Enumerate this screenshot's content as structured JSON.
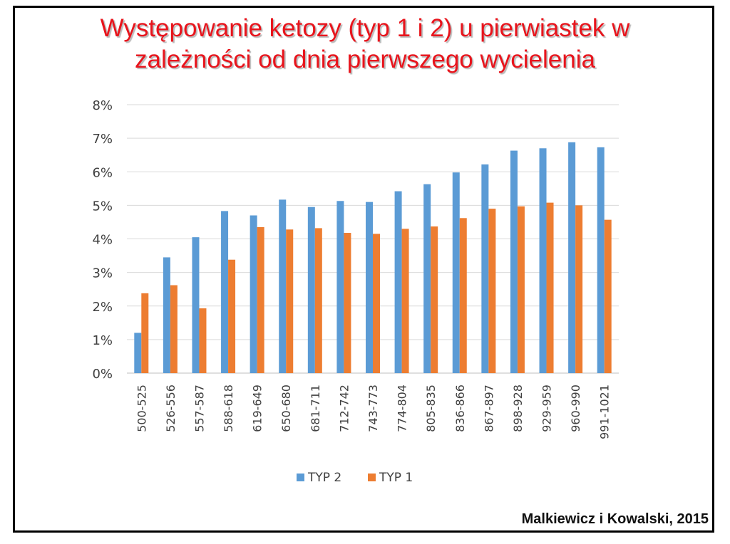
{
  "title_lines": [
    "Występowanie ketozy (typ 1 i 2) u pierwiastek w",
    "zależności od dnia pierwszego wycielenia"
  ],
  "credit": "Malkiewicz i Kowalski, 2015",
  "colors": {
    "title": "#e8141c",
    "typ2": "#5b9bd5",
    "typ1": "#ed7d31",
    "grid": "#d9d9d9",
    "axis_text": "#404040"
  },
  "chart_data": {
    "type": "bar",
    "categories": [
      "500-525",
      "526-556",
      "557-587",
      "588-618",
      "619-649",
      "650-680",
      "681-711",
      "712-742",
      "743-773",
      "774-804",
      "805-835",
      "836-866",
      "867-897",
      "898-928",
      "929-959",
      "960-990",
      "991-1021"
    ],
    "series": [
      {
        "name": "TYP 2",
        "color": "#5b9bd5",
        "values": [
          1.2,
          3.45,
          4.05,
          4.83,
          4.7,
          5.17,
          4.95,
          5.13,
          5.1,
          5.42,
          5.63,
          5.98,
          6.22,
          6.63,
          6.7,
          6.88,
          6.73
        ]
      },
      {
        "name": "TYP 1",
        "color": "#ed7d31",
        "values": [
          2.38,
          2.62,
          1.93,
          3.38,
          4.35,
          4.28,
          4.32,
          4.18,
          4.15,
          4.3,
          4.37,
          4.62,
          4.9,
          4.97,
          5.08,
          5.0,
          4.57
        ]
      }
    ],
    "yticks": [
      "0%",
      "1%",
      "2%",
      "3%",
      "4%",
      "5%",
      "6%",
      "7%",
      "8%"
    ],
    "ylim": [
      0,
      8
    ],
    "ylabel_format": "percent",
    "grid": true,
    "legend_position": "bottom-center"
  }
}
